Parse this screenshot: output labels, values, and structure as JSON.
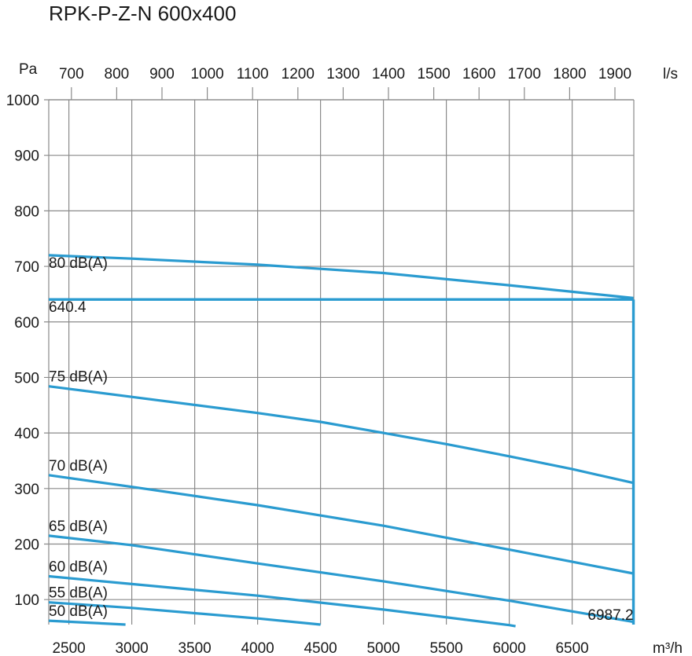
{
  "chart_data": {
    "type": "line",
    "title": "RPK-P-Z-N 600x400",
    "ylabel": "Pa",
    "xlabel": "m³/h",
    "x2label": "l/s",
    "xlim": [
      2340,
      6990
    ],
    "ylim": [
      55,
      1000
    ],
    "x_ticks": [
      2500,
      3000,
      3500,
      4000,
      4500,
      5000,
      5500,
      6000,
      6500
    ],
    "x2_ticks": [
      700,
      800,
      900,
      1000,
      1100,
      1200,
      1300,
      1400,
      1500,
      1600,
      1700,
      1800,
      1900
    ],
    "y_ticks": [
      100,
      200,
      300,
      400,
      500,
      600,
      700,
      800,
      900,
      1000
    ],
    "series": [
      {
        "name": "80 dB(A)",
        "x": [
          2340,
          3000,
          4000,
          5000,
          6000,
          6987
        ],
        "y": [
          720,
          714,
          703,
          688,
          666,
          643
        ]
      },
      {
        "name": "75 dB(A)",
        "x": [
          2340,
          3000,
          4000,
          4500,
          5000,
          5500,
          6000,
          6500,
          6987
        ],
        "y": [
          484,
          465,
          436,
          420,
          400,
          380,
          358,
          335,
          310
        ]
      },
      {
        "name": "70 dB(A)",
        "x": [
          2340,
          3000,
          4000,
          5000,
          6000,
          6987
        ],
        "y": [
          324,
          303,
          270,
          233,
          190,
          147
        ]
      },
      {
        "name": "65 dB(A)",
        "x": [
          2340,
          3000,
          4000,
          5000,
          6000,
          6987
        ],
        "y": [
          215,
          198,
          165,
          133,
          98,
          60
        ]
      },
      {
        "name": "60 dB(A)",
        "x": [
          2340,
          3000,
          4000,
          5000,
          6000,
          6050
        ],
        "y": [
          142,
          128,
          107,
          82,
          54,
          52
        ]
      },
      {
        "name": "55 dB(A)",
        "x": [
          2340,
          3000,
          4000,
          4500
        ],
        "y": [
          95,
          85,
          66,
          55
        ]
      },
      {
        "name": "50 dB(A)",
        "x": [
          2340,
          2950
        ],
        "y": [
          62,
          55
        ]
      }
    ],
    "operating_point": {
      "x": 6987.2,
      "y": 640.4,
      "x_label": "6987.2",
      "y_label": "640.4"
    }
  }
}
